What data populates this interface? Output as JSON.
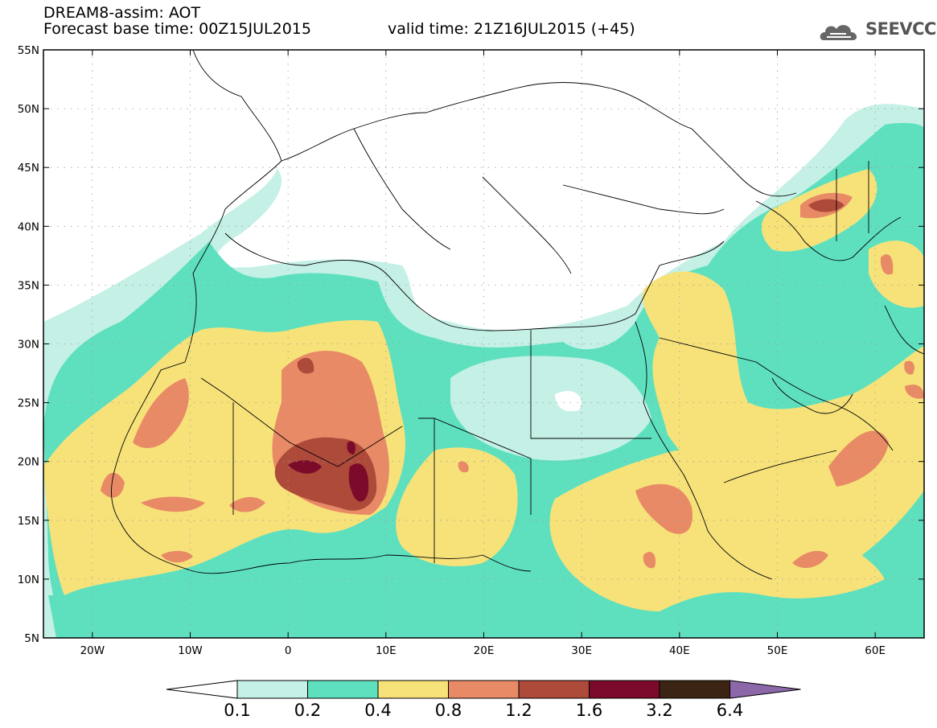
{
  "header": {
    "title": "DREAM8-assim: AOT",
    "base_time": "Forecast base time: 00Z15JUL2015",
    "valid_time": "valid time: 21Z16JUL2015 (+45)",
    "logo_text": "SEEVCCC",
    "logo_icon": "cloud-icon"
  },
  "map": {
    "lon_range": [
      -25,
      65
    ],
    "lat_range": [
      5,
      55
    ],
    "lon_ticks": [
      {
        "value": -20,
        "label": "20W"
      },
      {
        "value": -10,
        "label": "10W"
      },
      {
        "value": 0,
        "label": "0"
      },
      {
        "value": 10,
        "label": "10E"
      },
      {
        "value": 20,
        "label": "20E"
      },
      {
        "value": 30,
        "label": "30E"
      },
      {
        "value": 40,
        "label": "40E"
      },
      {
        "value": 50,
        "label": "50E"
      },
      {
        "value": 60,
        "label": "60E"
      }
    ],
    "lat_ticks": [
      {
        "value": 5,
        "label": "5N"
      },
      {
        "value": 10,
        "label": "10N"
      },
      {
        "value": 15,
        "label": "15N"
      },
      {
        "value": 20,
        "label": "20N"
      },
      {
        "value": 25,
        "label": "25N"
      },
      {
        "value": 30,
        "label": "30N"
      },
      {
        "value": 35,
        "label": "35N"
      },
      {
        "value": 40,
        "label": "40N"
      },
      {
        "value": 45,
        "label": "45N"
      },
      {
        "value": 50,
        "label": "50N"
      },
      {
        "value": 55,
        "label": "55N"
      }
    ]
  },
  "colorbar": {
    "levels": [
      "0.1",
      "0.2",
      "0.4",
      "0.8",
      "1.2",
      "1.6",
      "3.2",
      "6.4"
    ],
    "colors": [
      "#ffffff",
      "#c4f0e6",
      "#5ee0bf",
      "#f7e27a",
      "#e88a66",
      "#ad4a3a",
      "#7c0a2a",
      "#3c2414",
      "#8c68a8"
    ]
  }
}
